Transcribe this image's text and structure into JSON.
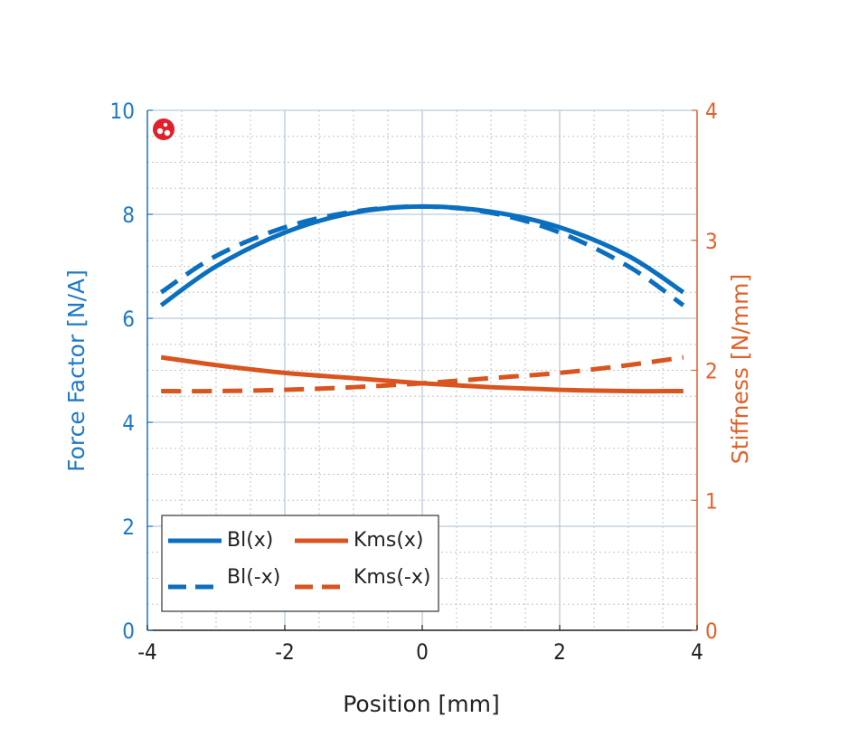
{
  "colors": {
    "left_axis": "#1f7ac4",
    "right_axis": "#e0622a",
    "bl": "#0b6fbf",
    "kms": "#d9541e",
    "grid_major": "#b9cad8",
    "grid_minor": "#c3c3c3",
    "logo": "#e0202a"
  },
  "chart_data": {
    "type": "line",
    "xlabel": "Position [mm]",
    "ylabel_left": "Force Factor [N/A]",
    "ylabel_right": "Stiffness [N/mm]",
    "xlim": [
      -4,
      4
    ],
    "ylim_left": [
      0,
      10
    ],
    "ylim_right": [
      0,
      4
    ],
    "x_ticks": [
      "-4",
      "-2",
      "0",
      "2",
      "4"
    ],
    "y_left_ticks": [
      "0",
      "2",
      "4",
      "6",
      "8",
      "10"
    ],
    "y_right_ticks": [
      "0",
      "1",
      "2",
      "3",
      "4"
    ],
    "grid": true,
    "legend_position": "bottom-left",
    "legend": [
      "Bl(x)",
      "Kms(x)",
      "Bl(-x)",
      "Kms(-x)"
    ],
    "series": [
      {
        "name": "Bl(x)",
        "axis": "left",
        "style": "solid",
        "x": [
          -3.8,
          -3.0,
          -2.0,
          -1.0,
          0.0,
          1.0,
          2.0,
          3.0,
          3.8
        ],
        "y": [
          6.25,
          7.0,
          7.65,
          8.03,
          8.15,
          8.05,
          7.75,
          7.2,
          6.5
        ]
      },
      {
        "name": "Bl(-x)",
        "axis": "left",
        "style": "dashed",
        "x": [
          -3.8,
          -3.0,
          -2.0,
          -1.0,
          0.0,
          1.0,
          2.0,
          3.0,
          3.8
        ],
        "y": [
          6.5,
          7.2,
          7.75,
          8.05,
          8.15,
          8.03,
          7.65,
          7.0,
          6.25
        ]
      },
      {
        "name": "Kms(x)",
        "axis": "right",
        "style": "solid",
        "x": [
          -3.8,
          -3.0,
          -2.0,
          -1.0,
          0.0,
          1.0,
          2.0,
          3.0,
          3.8
        ],
        "y": [
          2.1,
          2.04,
          1.98,
          1.94,
          1.9,
          1.87,
          1.85,
          1.84,
          1.84
        ]
      },
      {
        "name": "Kms(-x)",
        "axis": "right",
        "style": "dashed",
        "x": [
          -3.8,
          -3.0,
          -2.0,
          -1.0,
          0.0,
          1.0,
          2.0,
          3.0,
          3.8
        ],
        "y": [
          1.84,
          1.84,
          1.85,
          1.87,
          1.9,
          1.94,
          1.98,
          2.04,
          2.1
        ]
      }
    ]
  }
}
